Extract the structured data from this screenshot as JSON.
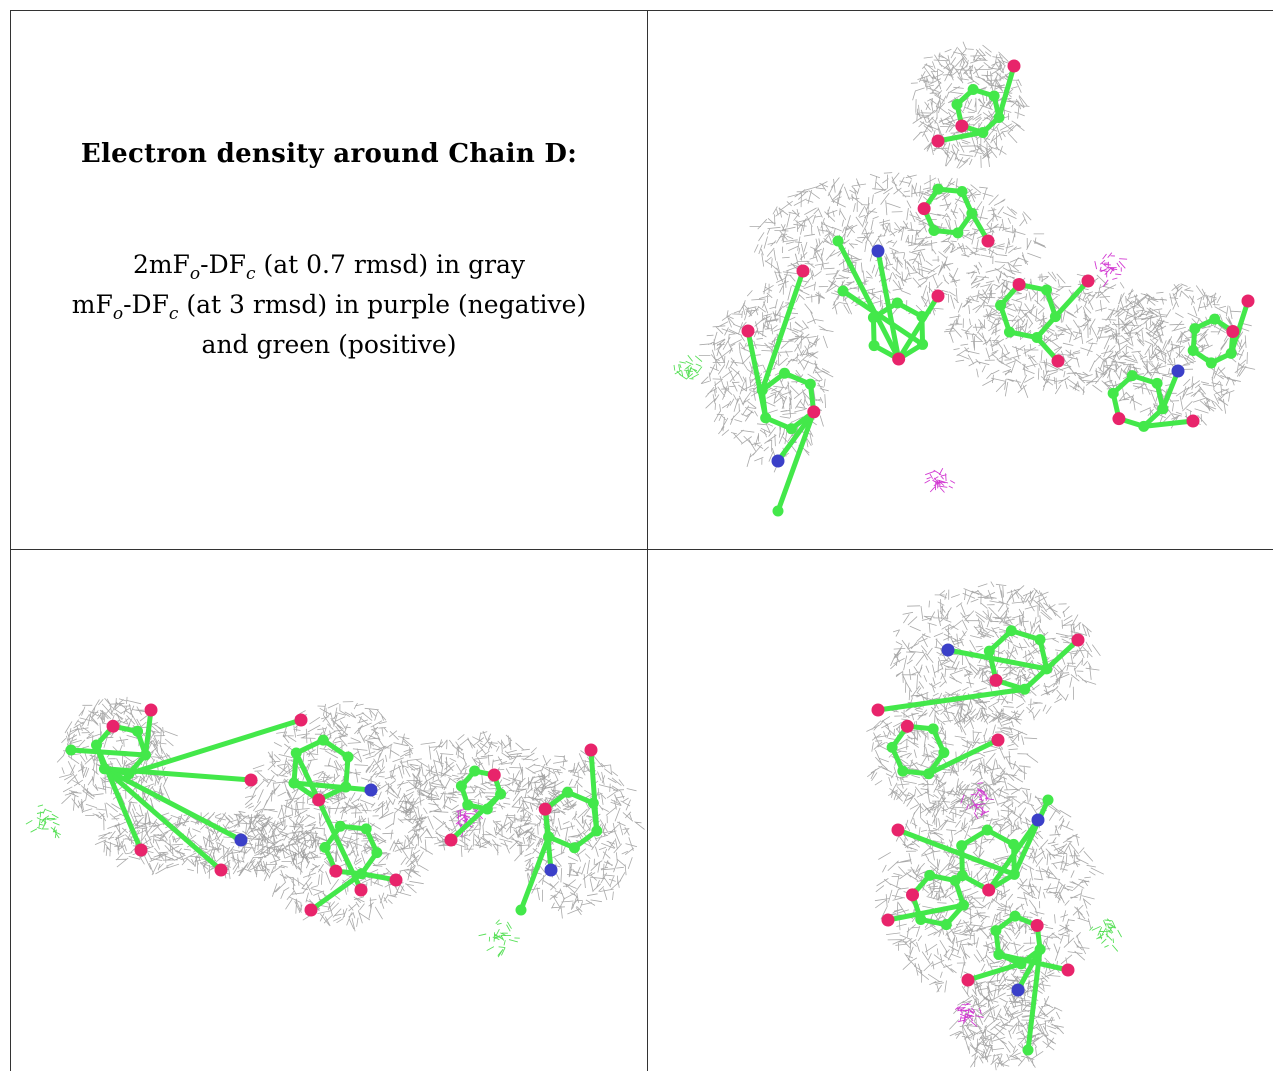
{
  "legend": {
    "title": "Electron density around Chain D:",
    "line1": {
      "prefix": "2mF",
      "sub1": "o",
      "mid": "-DF",
      "sub2": "c",
      "suffix": " (at 0.7 rmsd) in gray"
    },
    "line2": {
      "prefix": "mF",
      "sub1": "o",
      "mid": "-DF",
      "sub2": "c",
      "suffix": " (at 3 rmsd) in purple (negative)"
    },
    "line3": "and green (positive)"
  },
  "panels": [
    {
      "name": "view-top-right"
    },
    {
      "name": "view-bottom-left"
    },
    {
      "name": "view-bottom-right"
    }
  ],
  "colors": {
    "carbon": "#43e84a",
    "oxygen": "#e8246b",
    "nitrogen": "#3b40c8",
    "mesh_gray": "#9a9a9a",
    "mesh_negative": "#d23ad2",
    "mesh_positive": "#58e058"
  }
}
